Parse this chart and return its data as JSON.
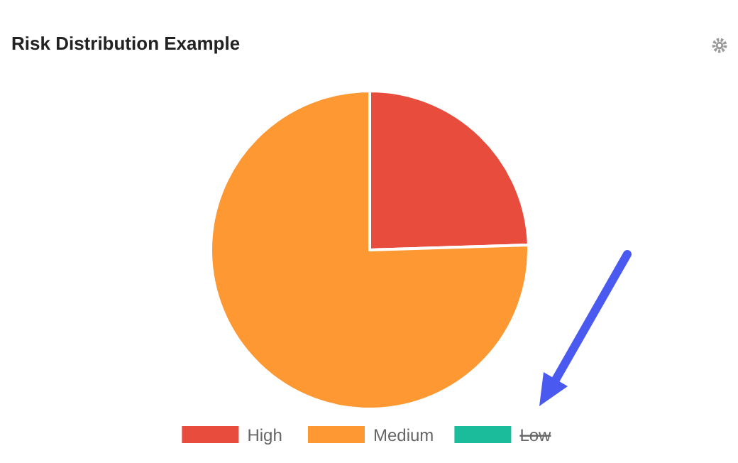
{
  "chart_data": {
    "type": "pie",
    "title": "Risk Distribution Example",
    "categories": [
      "High",
      "Medium",
      "Low"
    ],
    "values": [
      24.5,
      75.5,
      null
    ],
    "colors": [
      "#e84c3d",
      "#fe9833",
      "#1abc9c"
    ],
    "legend": "bottom"
  }
}
